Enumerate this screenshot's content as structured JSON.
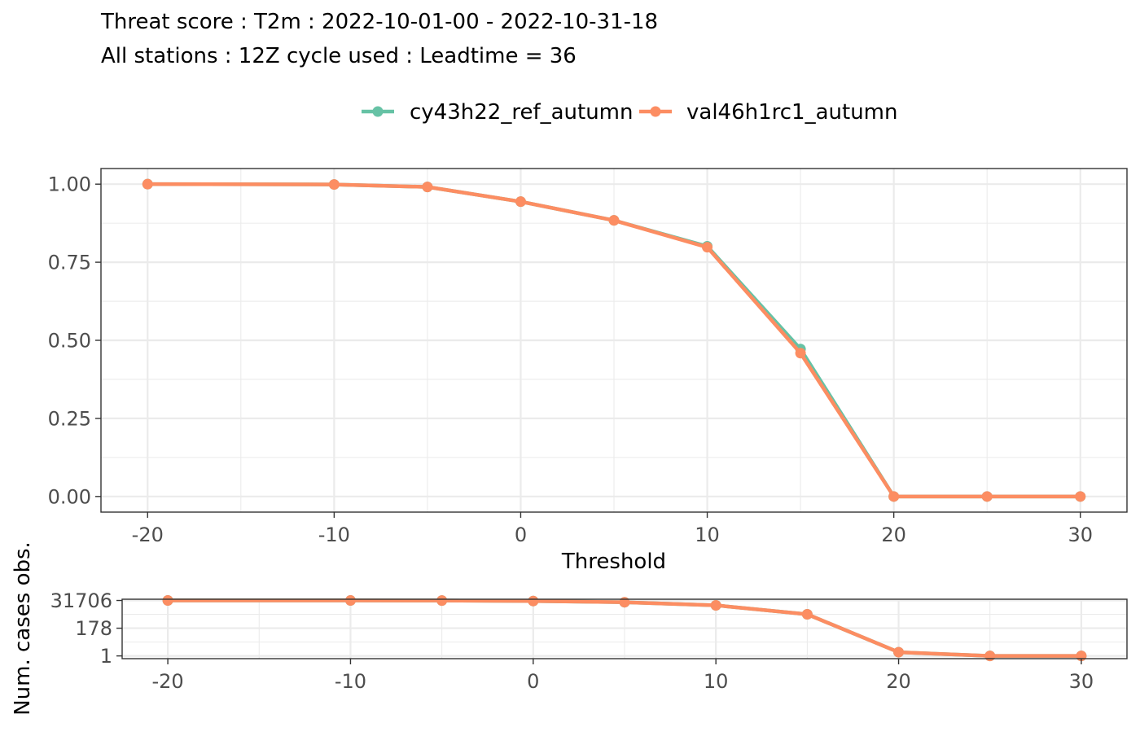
{
  "title": "Threat score : T2m : 2022-10-01-00 - 2022-10-31-18",
  "subtitle": "All stations : 12Z cycle used : Leadtime = 36",
  "colors": {
    "cy43h22_ref_autumn": "#66c2a5",
    "val46h1rc1_autumn": "#fc8d62"
  },
  "chart_data": [
    {
      "type": "line",
      "title": "Threat score : T2m : 2022-10-01-00 - 2022-10-31-18",
      "subtitle": "All stations : 12Z cycle used : Leadtime = 36",
      "xlabel": "Threshold",
      "ylabel": "",
      "xlim": [
        -22.5,
        32.5
      ],
      "ylim": [
        -0.05,
        1.05
      ],
      "x_ticks": [
        -20,
        -10,
        0,
        10,
        20,
        30
      ],
      "x_tick_labels": [
        "-20",
        "-10",
        "0",
        "10",
        "20",
        "30"
      ],
      "y_ticks": [
        0,
        0.25,
        0.5,
        0.75,
        1
      ],
      "y_tick_labels": [
        "0.00",
        "0.25",
        "0.50",
        "0.75",
        "1.00"
      ],
      "grid": true,
      "legend_position": "top",
      "x": [
        -20,
        -10,
        -5,
        0,
        5,
        10,
        15,
        20,
        25,
        30
      ],
      "series": [
        {
          "name": "cy43h22_ref_autumn",
          "values": [
            1.0,
            0.999,
            0.991,
            0.944,
            0.884,
            0.801,
            0.472,
            0.0,
            0.0,
            0.0
          ]
        },
        {
          "name": "val46h1rc1_autumn",
          "values": [
            1.0,
            0.999,
            0.991,
            0.944,
            0.884,
            0.798,
            0.459,
            0.0,
            0.0,
            0.0
          ]
        }
      ]
    },
    {
      "type": "line",
      "title": "",
      "xlabel": "",
      "ylabel": "Num. cases obs.",
      "y_scale": "log",
      "xlim": [
        -22.5,
        32.5
      ],
      "ylim": [
        0.6,
        40000
      ],
      "x_ticks": [
        -20,
        -10,
        0,
        10,
        20,
        30
      ],
      "x_tick_labels": [
        "-20",
        "-10",
        "0",
        "10",
        "20",
        "30"
      ],
      "y_ticks": [
        1,
        178,
        31706
      ],
      "y_tick_labels": [
        "1",
        "178",
        "31706"
      ],
      "grid": true,
      "x": [
        -20,
        -10,
        -5,
        0,
        5,
        10,
        15,
        20,
        25,
        30
      ],
      "series": [
        {
          "name": "cy43h22_ref_autumn",
          "values": [
            31706,
            31600,
            31200,
            28600,
            22800,
            12800,
            2400,
            2,
            1,
            1
          ]
        },
        {
          "name": "val46h1rc1_autumn",
          "values": [
            31706,
            31600,
            31200,
            28600,
            22800,
            12800,
            2400,
            2,
            1,
            1
          ]
        }
      ]
    }
  ]
}
